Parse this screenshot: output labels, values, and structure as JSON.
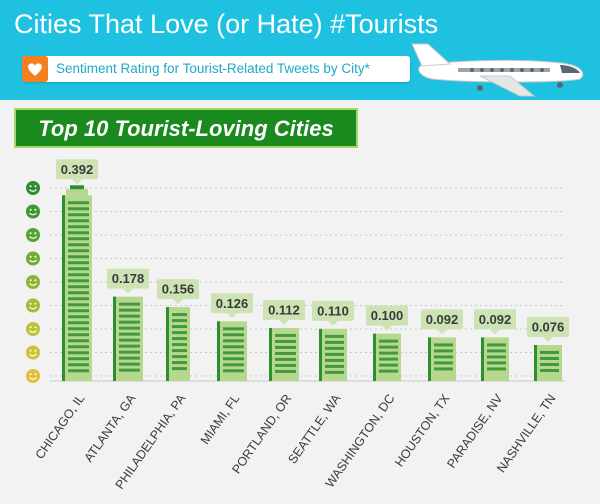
{
  "header": {
    "title": "Cities That Love (or Hate) #Tourists",
    "subtitle": "Sentiment Rating for Tourist-Related Tweets by City*"
  },
  "section": {
    "label": "Top 10 Tourist-Loving Cities"
  },
  "icons": {
    "header_badge": "heart-icon",
    "decoration": "airplane-icon",
    "scale": "smiley-face-icon"
  },
  "colors": {
    "header_band": "#1ec2e0",
    "heart_badge": "#f47f20",
    "section_fill": "#1a8a1f",
    "building_light": "#b6d88e",
    "building_dark": "#2f8f2f",
    "value_tag": "#cde3b4"
  },
  "chart_data": {
    "type": "bar",
    "title": "",
    "xlabel": "",
    "ylabel": "",
    "ylim": [
      0,
      0.42
    ],
    "grid": true,
    "categories": [
      "CHICAGO, IL",
      "ATLANTA, GA",
      "PHILADELPHIA, PA",
      "MIAMI, FL",
      "PORTLAND, OR",
      "SEATTLE, WA",
      "WASHINGTON, DC",
      "HOUSTON, TX",
      "PARADISE, NV",
      "NASHVILLE, TN"
    ],
    "values": [
      0.392,
      0.178,
      0.156,
      0.126,
      0.112,
      0.11,
      0.1,
      0.092,
      0.092,
      0.076
    ],
    "value_labels": [
      "0.392",
      "0.178",
      "0.156",
      "0.126",
      "0.112",
      "0.110",
      "0.100",
      "0.092",
      "0.092",
      "0.076"
    ],
    "bar_style": "building",
    "scale_icon_count": 9
  }
}
